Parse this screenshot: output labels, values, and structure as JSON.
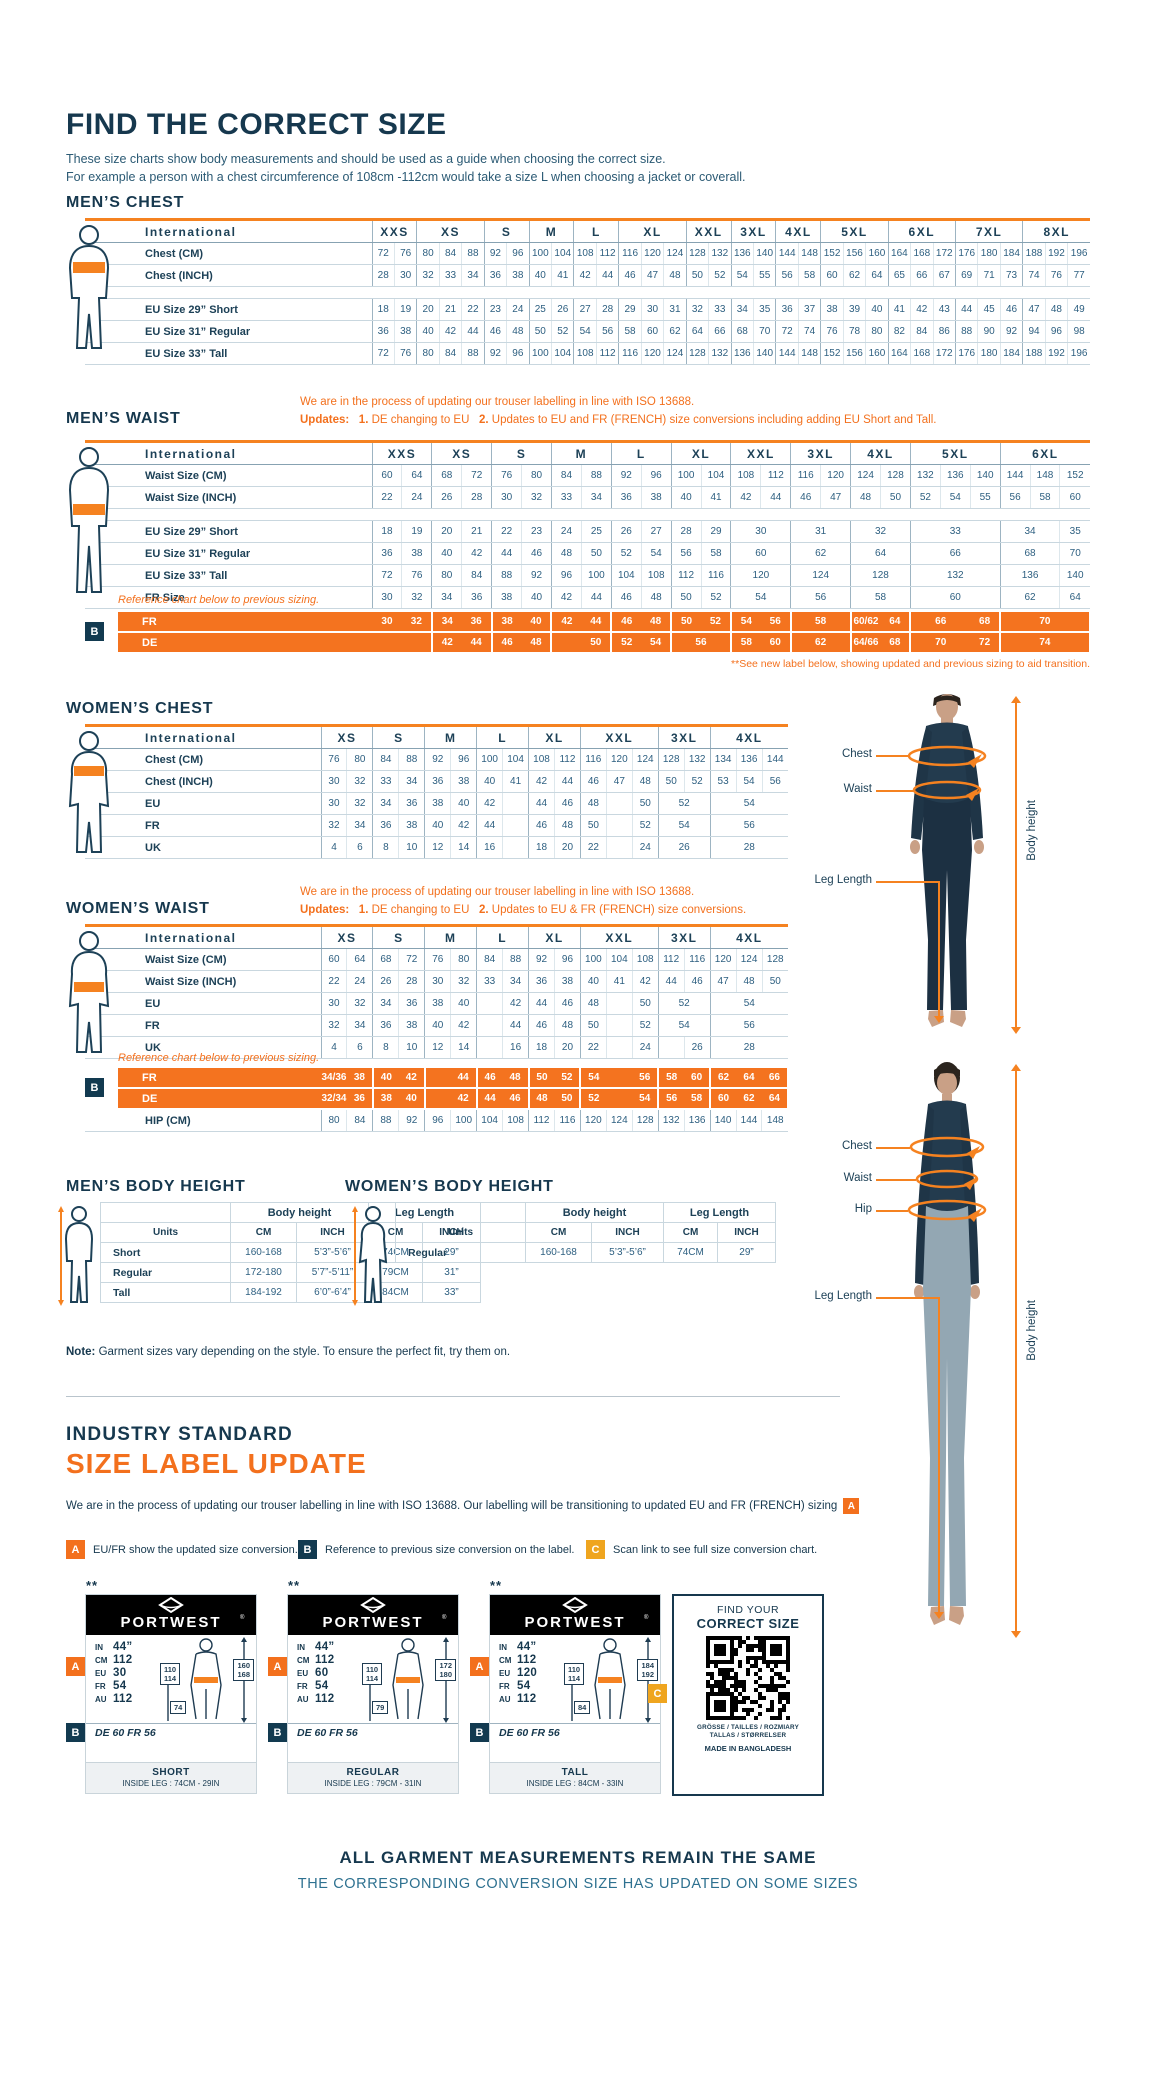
{
  "page": {
    "title": "FIND THE CORRECT SIZE",
    "sub1": "These size charts show body measurements and should be used as a guide when choosing the correct size.",
    "sub2": "For example a person with a chest circumference of 108cm -112cm would take a size L when choosing a jacket or coverall."
  },
  "colors": {
    "navy": "#16384e",
    "orange": "#f3701d",
    "orange_bg": "#f4731f",
    "gold": "#efa51f"
  },
  "mens_chest": {
    "heading": "MEN’S CHEST",
    "intl_label": "International",
    "sizes": [
      [
        "XXS",
        2
      ],
      [
        "XS",
        3
      ],
      [
        "S",
        2
      ],
      [
        "M",
        2
      ],
      [
        "L",
        2
      ],
      [
        "XL",
        3
      ],
      [
        "XXL",
        2
      ],
      [
        "3XL",
        2
      ],
      [
        "4XL",
        2
      ],
      [
        "5XL",
        3
      ],
      [
        "6XL",
        3
      ],
      [
        "7XL",
        3
      ],
      [
        "8XL",
        3
      ]
    ],
    "rows": [
      {
        "label": "Chest (CM)",
        "cells": [
          72,
          76,
          80,
          84,
          88,
          92,
          96,
          100,
          104,
          108,
          112,
          116,
          120,
          124,
          128,
          132,
          136,
          140,
          144,
          148,
          152,
          156,
          160,
          164,
          168,
          172,
          176,
          180,
          184,
          188,
          192,
          196
        ]
      },
      {
        "label": "Chest (INCH)",
        "cells": [
          28,
          30,
          32,
          33,
          34,
          36,
          38,
          40,
          41,
          42,
          44,
          46,
          47,
          48,
          50,
          52,
          54,
          55,
          56,
          58,
          60,
          62,
          64,
          65,
          66,
          67,
          69,
          71,
          73,
          74,
          76,
          77
        ]
      },
      {
        "spacer": true
      },
      {
        "label": "EU Size 29” Short",
        "cells": [
          18,
          19,
          20,
          21,
          22,
          23,
          24,
          25,
          26,
          27,
          28,
          29,
          30,
          31,
          32,
          33,
          34,
          35,
          36,
          37,
          38,
          39,
          40,
          41,
          42,
          43,
          44,
          45,
          46,
          47,
          48,
          49
        ]
      },
      {
        "label": "EU Size 31” Regular",
        "cells": [
          36,
          38,
          40,
          42,
          44,
          46,
          48,
          50,
          52,
          54,
          56,
          58,
          60,
          62,
          64,
          66,
          68,
          70,
          72,
          74,
          76,
          78,
          80,
          82,
          84,
          86,
          88,
          90,
          92,
          94,
          96,
          98
        ]
      },
      {
        "label": "EU Size 33” Tall",
        "cells": [
          72,
          76,
          80,
          84,
          88,
          92,
          96,
          100,
          104,
          108,
          112,
          116,
          120,
          124,
          128,
          132,
          136,
          140,
          144,
          148,
          152,
          156,
          160,
          164,
          168,
          172,
          176,
          180,
          184,
          188,
          192,
          196
        ]
      }
    ]
  },
  "mens_waist": {
    "heading": "MEN’S WAIST",
    "intl_label": "International",
    "note1": "We are in the process of updating our trouser labelling in line with ISO 13688.",
    "upd_label": "Updates:",
    "u1n": "1.",
    "u1": " DE changing to EU",
    "u2n": "2.",
    "u2": " Updates to EU and FR (FRENCH) size conversions including adding EU Short and Tall.",
    "sizes": [
      [
        "XXS",
        2
      ],
      [
        "XS",
        2
      ],
      [
        "S",
        2
      ],
      [
        "M",
        2
      ],
      [
        "L",
        2
      ],
      [
        "XL",
        2
      ],
      [
        "XXL",
        2
      ],
      [
        "3XL",
        2
      ],
      [
        "4XL",
        2
      ],
      [
        "5XL",
        3
      ],
      [
        "6XL",
        3
      ]
    ],
    "rows": [
      {
        "label": "Waist Size (CM)",
        "cells": [
          60,
          64,
          68,
          72,
          76,
          80,
          84,
          88,
          92,
          96,
          100,
          104,
          108,
          112,
          116,
          120,
          124,
          128,
          132,
          136,
          140,
          144,
          148,
          152
        ]
      },
      {
        "label": "Waist Size (INCH)",
        "cells": [
          22,
          24,
          26,
          28,
          30,
          32,
          33,
          34,
          36,
          38,
          40,
          41,
          42,
          44,
          46,
          47,
          48,
          50,
          52,
          54,
          55,
          56,
          58,
          60
        ]
      },
      {
        "spacer": true
      },
      {
        "label": "EU Size 29” Short",
        "cells": [
          18,
          19,
          20,
          21,
          22,
          23,
          24,
          25,
          26,
          27,
          28,
          29,
          [
            30,
            2
          ],
          [
            31,
            2
          ],
          [
            32,
            2
          ],
          [
            33,
            3
          ],
          [
            34,
            2
          ],
          [
            35,
            1
          ]
        ]
      },
      {
        "label": "EU Size 31” Regular",
        "cells": [
          36,
          38,
          40,
          42,
          44,
          46,
          48,
          50,
          52,
          54,
          56,
          58,
          [
            60,
            2
          ],
          [
            62,
            2
          ],
          [
            64,
            2
          ],
          [
            66,
            3
          ],
          [
            68,
            2
          ],
          [
            70,
            1
          ]
        ]
      },
      {
        "label": "EU Size 33” Tall",
        "cells": [
          72,
          76,
          80,
          84,
          88,
          92,
          96,
          100,
          104,
          108,
          112,
          116,
          [
            120,
            2
          ],
          [
            124,
            2
          ],
          [
            128,
            2
          ],
          [
            132,
            3
          ],
          [
            136,
            2
          ],
          [
            140,
            1
          ]
        ]
      },
      {
        "label": "FR Size",
        "cells": [
          30,
          32,
          34,
          36,
          38,
          40,
          42,
          44,
          46,
          48,
          50,
          52,
          [
            54,
            2
          ],
          [
            56,
            2
          ],
          [
            58,
            2
          ],
          [
            60,
            3
          ],
          [
            62,
            2
          ],
          [
            64,
            1
          ]
        ]
      }
    ],
    "ref_note": "Reference chart below to previous sizing.",
    "ref_rows": [
      {
        "label": "FR",
        "cells": [
          30,
          32,
          34,
          36,
          38,
          40,
          42,
          44,
          46,
          48,
          50,
          52,
          54,
          56,
          [
            58,
            2
          ],
          "60/62",
          64,
          [
            66,
            2
          ],
          68,
          [
            70,
            3
          ]
        ]
      },
      {
        "label": "DE",
        "cells": [
          [
            "",
            2
          ],
          42,
          44,
          46,
          48,
          "",
          50,
          52,
          54,
          [
            56,
            2
          ],
          58,
          60,
          [
            62,
            2
          ],
          "64/66",
          68,
          [
            70,
            2
          ],
          72,
          [
            74,
            3
          ]
        ]
      }
    ],
    "see_note": "**See new label below, showing updated and previous sizing to aid transition."
  },
  "womens_chest": {
    "heading": "WOMEN’S CHEST",
    "intl_label": "International",
    "sizes": [
      [
        "XS",
        2
      ],
      [
        "S",
        2
      ],
      [
        "M",
        2
      ],
      [
        "L",
        2
      ],
      [
        "XL",
        2
      ],
      [
        "XXL",
        3
      ],
      [
        "3XL",
        2
      ],
      [
        "4XL",
        3
      ]
    ],
    "rows": [
      {
        "label": "Chest (CM)",
        "cells": [
          76,
          80,
          84,
          88,
          92,
          96,
          100,
          104,
          108,
          112,
          116,
          120,
          124,
          128,
          132,
          134,
          136,
          144
        ]
      },
      {
        "label": "Chest (INCH)",
        "cells": [
          30,
          32,
          33,
          34,
          36,
          38,
          40,
          41,
          42,
          44,
          46,
          47,
          48,
          50,
          52,
          53,
          54,
          56
        ]
      },
      {
        "label": "EU",
        "cells": [
          30,
          32,
          34,
          36,
          38,
          40,
          42,
          "",
          44,
          46,
          48,
          "",
          50,
          [
            52,
            2
          ],
          [
            54,
            3
          ]
        ]
      },
      {
        "label": "FR",
        "cells": [
          32,
          34,
          36,
          38,
          40,
          42,
          44,
          "",
          46,
          48,
          50,
          "",
          52,
          [
            54,
            2
          ],
          [
            56,
            3
          ]
        ]
      },
      {
        "label": "UK",
        "cells": [
          4,
          6,
          8,
          10,
          12,
          14,
          16,
          "",
          18,
          20,
          22,
          "",
          24,
          [
            26,
            2
          ],
          [
            28,
            3
          ]
        ]
      }
    ]
  },
  "womens_waist": {
    "heading": "WOMEN’S WAIST",
    "intl_label": "International",
    "note1": "We are in the process of updating our trouser labelling in line with ISO 13688.",
    "upd_label": "Updates:",
    "u1n": "1.",
    "u1": " DE changing to EU",
    "u2n": "2.",
    "u2": " Updates to EU & FR (FRENCH) size conversions.",
    "sizes": [
      [
        "XS",
        2
      ],
      [
        "S",
        2
      ],
      [
        "M",
        2
      ],
      [
        "L",
        2
      ],
      [
        "XL",
        2
      ],
      [
        "XXL",
        3
      ],
      [
        "3XL",
        2
      ],
      [
        "4XL",
        3
      ]
    ],
    "rows": [
      {
        "label": "Waist Size (CM)",
        "cells": [
          60,
          64,
          68,
          72,
          76,
          80,
          84,
          88,
          92,
          96,
          100,
          104,
          108,
          112,
          116,
          120,
          124,
          128
        ]
      },
      {
        "label": "Waist Size (INCH)",
        "cells": [
          22,
          24,
          26,
          28,
          30,
          32,
          33,
          34,
          36,
          38,
          40,
          41,
          42,
          44,
          46,
          47,
          48,
          50
        ]
      },
      {
        "label": "EU",
        "cells": [
          30,
          32,
          34,
          36,
          38,
          40,
          "",
          42,
          44,
          46,
          48,
          "",
          50,
          [
            52,
            2
          ],
          [
            54,
            3
          ]
        ]
      },
      {
        "label": "FR",
        "cells": [
          32,
          34,
          36,
          38,
          40,
          42,
          "",
          44,
          46,
          48,
          50,
          "",
          52,
          [
            54,
            2
          ],
          [
            56,
            3
          ]
        ]
      },
      {
        "label": "UK",
        "cells": [
          4,
          6,
          8,
          10,
          12,
          14,
          "",
          16,
          18,
          20,
          22,
          "",
          24,
          "",
          26,
          [
            28,
            3
          ]
        ]
      }
    ],
    "ref_note": "Reference chart below to previous sizing.",
    "ref_rows": [
      {
        "label": "FR",
        "cells": [
          "34/36",
          38,
          40,
          42,
          "",
          44,
          46,
          48,
          50,
          52,
          54,
          "",
          56,
          58,
          60,
          62,
          64,
          66
        ]
      },
      {
        "label": "DE",
        "cells": [
          "32/34",
          36,
          38,
          40,
          "",
          42,
          44,
          46,
          48,
          50,
          52,
          "",
          54,
          56,
          58,
          60,
          62,
          64
        ]
      }
    ],
    "hip_row": {
      "label": "HIP (CM)",
      "cells": [
        80,
        84,
        88,
        92,
        96,
        100,
        104,
        108,
        112,
        116,
        120,
        124,
        128,
        132,
        136,
        140,
        144,
        148
      ]
    }
  },
  "mens_bh": {
    "heading": "MEN’S BODY HEIGHT",
    "group1": "Body height",
    "group2": "Leg Length",
    "units_label": "Units",
    "unit_cols": [
      "CM",
      "INCH",
      "CM",
      "INCH"
    ],
    "rows": [
      [
        "Short",
        "160-168",
        "5’3”-5’6”",
        "74CM",
        "29”"
      ],
      [
        "Regular",
        "172-180",
        "5’7”-5’11”",
        "79CM",
        "31”"
      ],
      [
        "Tall",
        "184-192",
        "6’0”-6’4”",
        "84CM",
        "33”"
      ]
    ]
  },
  "womens_bh": {
    "heading": "WOMEN’S BODY HEIGHT",
    "group1": "Body height",
    "group2": "Leg Length",
    "units_label": "Units",
    "unit_cols": [
      "CM",
      "INCH",
      "CM",
      "INCH"
    ],
    "rows": [
      [
        "Regular",
        "160-168",
        "5’3”-5’6”",
        "74CM",
        "29”"
      ]
    ]
  },
  "fig": {
    "man": {
      "chest": "Chest",
      "waist": "Waist",
      "leg": "Leg Length",
      "height": "Body height"
    },
    "woman": {
      "chest": "Chest",
      "waist": "Waist",
      "hip": "Hip",
      "leg": "Leg Length",
      "height": "Body height"
    }
  },
  "note": {
    "bold": "Note:",
    "text": " Garment sizes vary depending on the style. To ensure the perfect fit, try them on."
  },
  "industry": {
    "kicker": "INDUSTRY STANDARD",
    "title": "SIZE LABEL UPDATE",
    "par": "We are in the process of updating our trouser labelling in line with ISO 13688. Our labelling will be transitioning to updated EU and FR (FRENCH) sizing",
    "par_key": "A",
    "legend": [
      {
        "key": "A",
        "text": "EU/FR show the updated size conversion."
      },
      {
        "key": "B",
        "text": "Reference to previous size conversion on the label."
      },
      {
        "key": "C",
        "text": "Scan link to see full size conversion chart."
      }
    ]
  },
  "brand": "PORTWEST",
  "cards": [
    {
      "stars": "**",
      "values": [
        [
          "IN",
          "44”"
        ],
        [
          "CM",
          "112"
        ],
        [
          "EU",
          "30"
        ],
        [
          "FR",
          "54"
        ],
        [
          "AU",
          "112"
        ]
      ],
      "prev": "DE 60 FR 56",
      "waist_box": [
        "110",
        "114"
      ],
      "height_box": [
        "160",
        "168"
      ],
      "leg_box": "74",
      "fit": "SHORT",
      "leg": "INSIDE LEG : 74CM - 29IN"
    },
    {
      "stars": "**",
      "values": [
        [
          "IN",
          "44”"
        ],
        [
          "CM",
          "112"
        ],
        [
          "EU",
          "60"
        ],
        [
          "FR",
          "54"
        ],
        [
          "AU",
          "112"
        ]
      ],
      "prev": "DE 60 FR 56",
      "waist_box": [
        "110",
        "114"
      ],
      "height_box": [
        "172",
        "180"
      ],
      "leg_box": "79",
      "fit": "REGULAR",
      "leg": "INSIDE LEG : 79CM - 31IN"
    },
    {
      "stars": "**",
      "values": [
        [
          "IN",
          "44”"
        ],
        [
          "CM",
          "112"
        ],
        [
          "EU",
          "120"
        ],
        [
          "FR",
          "54"
        ],
        [
          "AU",
          "112"
        ]
      ],
      "prev": "DE 60 FR 56",
      "waist_box": [
        "110",
        "114"
      ],
      "height_box": [
        "184",
        "192"
      ],
      "leg_box": "84",
      "fit": "TALL",
      "leg": "INSIDE LEG : 84CM - 33IN"
    }
  ],
  "qr": {
    "key": "C",
    "find": "FIND YOUR",
    "correct": "CORRECT SIZE",
    "langs1": "GRÖSSE / TAILLES / ROZMIARY",
    "langs2": "TALLAS / STØRRELSER",
    "made": "MADE IN BANGLADESH"
  },
  "footer": {
    "line1": "ALL GARMENT MEASUREMENTS REMAIN THE SAME",
    "line2": "THE CORRESPONDING CONVERSION SIZE HAS UPDATED ON SOME SIZES"
  }
}
